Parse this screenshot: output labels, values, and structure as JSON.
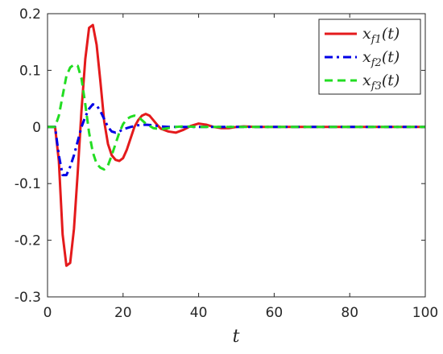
{
  "chart_data": {
    "type": "line",
    "title": "",
    "xlabel": "t",
    "ylabel": "",
    "xlim": [
      0,
      100
    ],
    "ylim": [
      -0.3,
      0.2
    ],
    "xticks": [
      0,
      20,
      40,
      60,
      80,
      100
    ],
    "xtick_labels": [
      "0",
      "20",
      "40",
      "60",
      "80",
      "100"
    ],
    "yticks": [
      -0.3,
      -0.2,
      -0.1,
      0,
      0.1,
      0.2
    ],
    "ytick_labels": [
      "-0.3",
      "-0.2",
      "-0.1",
      "0",
      "0.1",
      "0.2"
    ],
    "grid": false,
    "legend_position": "top-right",
    "series": [
      {
        "name": "x_f1(t)",
        "legend_base": "x",
        "legend_sub": "f1",
        "legend_tail": "(t)",
        "color": "#e41a1c",
        "dash": "solid",
        "x": [
          0,
          2,
          3,
          4,
          5,
          6,
          7,
          8,
          9,
          10,
          11,
          12,
          13,
          14,
          15,
          16,
          17,
          18,
          19,
          20,
          21,
          22,
          23,
          24,
          25,
          26,
          27,
          28,
          29,
          30,
          32,
          34,
          36,
          38,
          40,
          42,
          44,
          46,
          48,
          50,
          52,
          55,
          60,
          100
        ],
        "y": [
          0,
          0,
          -0.06,
          -0.19,
          -0.245,
          -0.24,
          -0.18,
          -0.08,
          0.03,
          0.12,
          0.175,
          0.18,
          0.145,
          0.08,
          0.01,
          -0.03,
          -0.05,
          -0.058,
          -0.06,
          -0.055,
          -0.04,
          -0.02,
          0.0,
          0.012,
          0.02,
          0.023,
          0.02,
          0.012,
          0.004,
          -0.003,
          -0.008,
          -0.01,
          -0.005,
          0.002,
          0.006,
          0.004,
          0.0,
          -0.002,
          -0.002,
          0.0,
          0.001,
          0.0,
          0.0,
          0.0
        ]
      },
      {
        "name": "x_f2(t)",
        "legend_base": "x",
        "legend_sub": "f2",
        "legend_tail": "(t)",
        "color": "#0000e6",
        "dash": "dashdot",
        "x": [
          0,
          2,
          3,
          4,
          5,
          6,
          7,
          8,
          9,
          10,
          11,
          12,
          13,
          14,
          15,
          16,
          17,
          18,
          19,
          20,
          22,
          24,
          26,
          28,
          30,
          32,
          34,
          36,
          100
        ],
        "y": [
          0,
          0,
          -0.05,
          -0.085,
          -0.085,
          -0.07,
          -0.05,
          -0.025,
          0.0,
          0.018,
          0.032,
          0.04,
          0.038,
          0.028,
          0.014,
          0.0,
          -0.008,
          -0.01,
          -0.008,
          -0.004,
          0.0,
          0.003,
          0.004,
          0.003,
          0.001,
          0.0,
          0.0,
          0.0,
          0.0
        ]
      },
      {
        "name": "x_f3(t)",
        "legend_base": "x",
        "legend_sub": "f3",
        "legend_tail": "(t)",
        "color": "#22dd22",
        "dash": "dashed",
        "x": [
          0,
          1,
          2,
          3,
          4,
          5,
          6,
          7,
          8,
          9,
          10,
          11,
          12,
          13,
          14,
          15,
          16,
          17,
          18,
          19,
          20,
          21,
          22,
          23,
          24,
          25,
          26,
          28,
          30,
          32,
          34,
          36,
          40,
          100
        ],
        "y": [
          0,
          0,
          0.0,
          0.02,
          0.055,
          0.09,
          0.105,
          0.11,
          0.108,
          0.085,
          0.04,
          -0.01,
          -0.045,
          -0.065,
          -0.072,
          -0.075,
          -0.068,
          -0.05,
          -0.03,
          -0.01,
          0.005,
          0.014,
          0.018,
          0.02,
          0.018,
          0.012,
          0.006,
          -0.002,
          -0.004,
          -0.002,
          0.0,
          0.001,
          0.0,
          0.0
        ]
      }
    ]
  }
}
